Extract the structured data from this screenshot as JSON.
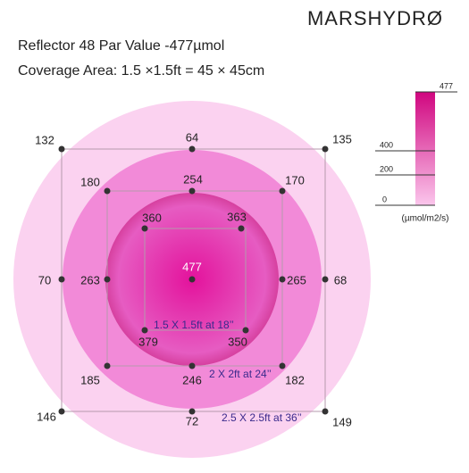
{
  "brand": "MARSHYDRØ",
  "title": [
    "Reflector 48 Par Value -477µmol",
    "Coverage Area: 1.5 ×1.5ft = 45 × 45cm"
  ],
  "legend": {
    "ticks": [
      477,
      400,
      200,
      0
    ],
    "unit": "(µmol/m2/s)"
  },
  "zones": [
    "1.5 X 1.5ft at 18’’",
    "2 X 2ft at 24’’",
    "2.5 X 2.5ft at 36’’"
  ],
  "points": [
    132,
    64,
    135,
    70,
    68,
    146,
    72,
    149,
    180,
    254,
    170,
    263,
    265,
    185,
    246,
    182,
    360,
    363,
    477,
    379,
    350
  ]
}
